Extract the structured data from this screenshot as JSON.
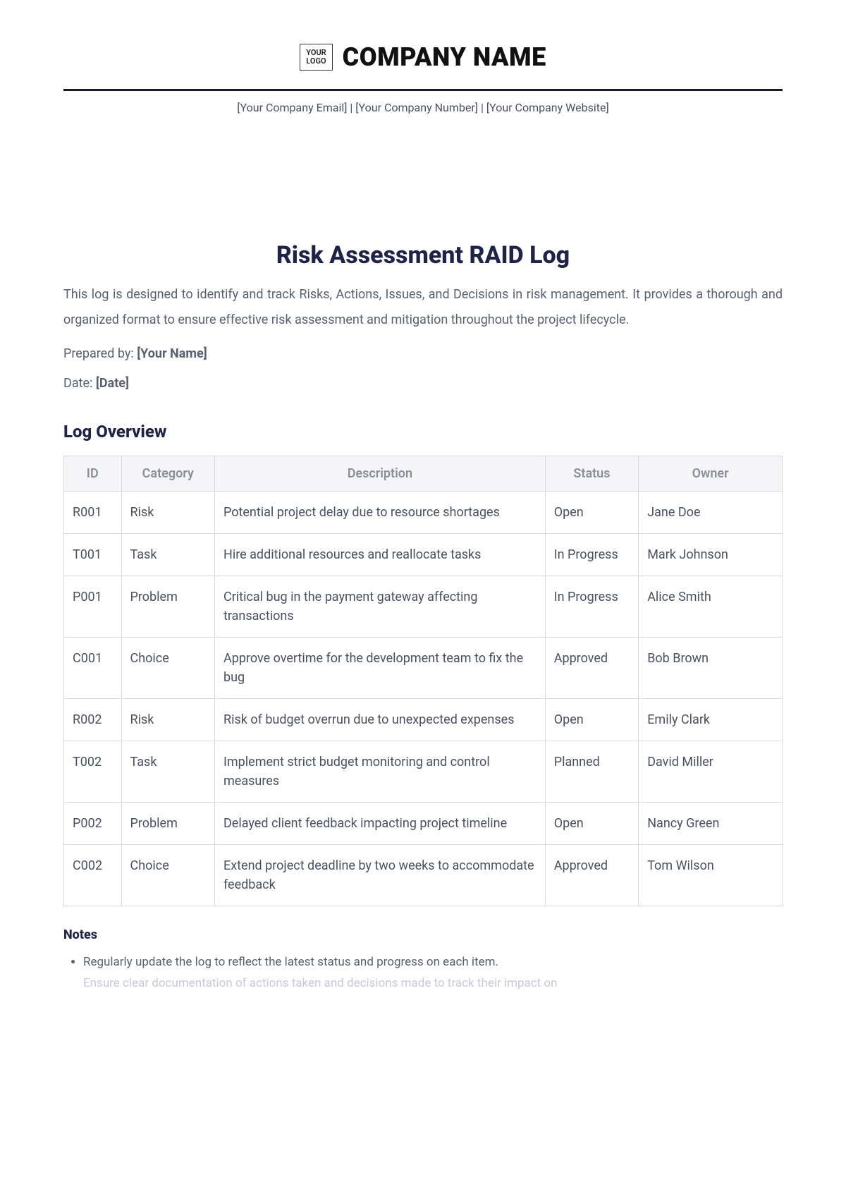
{
  "header": {
    "logo_text_line1": "YOUR",
    "logo_text_line2": "LOGO",
    "company_name": "COMPANY NAME",
    "contact_line": "[Your Company Email] | [Your Company Number] | [Your Company Website]"
  },
  "document": {
    "title": "Risk Assessment RAID Log",
    "intro": "This log is designed to identify and track Risks, Actions, Issues, and Decisions in risk management. It provides a thorough and organized format to ensure effective risk assessment and mitigation throughout the project lifecycle.",
    "prepared_by_label": "Prepared by: ",
    "prepared_by_value": "[Your Name]",
    "date_label": "Date: ",
    "date_value": "[Date]"
  },
  "log": {
    "section_title": "Log Overview",
    "columns": {
      "id": "ID",
      "category": "Category",
      "description": "Description",
      "status": "Status",
      "owner": "Owner"
    },
    "rows": [
      {
        "id": "R001",
        "category": "Risk",
        "description": "Potential project delay due to resource shortages",
        "status": "Open",
        "owner": "Jane Doe"
      },
      {
        "id": "T001",
        "category": "Task",
        "description": "Hire additional resources and reallocate tasks",
        "status": "In Progress",
        "owner": "Mark Johnson"
      },
      {
        "id": "P001",
        "category": "Problem",
        "description": "Critical bug in the payment gateway affecting transactions",
        "status": "In Progress",
        "owner": "Alice Smith"
      },
      {
        "id": "C001",
        "category": "Choice",
        "description": "Approve overtime for the development team to fix the bug",
        "status": "Approved",
        "owner": "Bob Brown"
      },
      {
        "id": "R002",
        "category": "Risk",
        "description": "Risk of budget overrun due to unexpected expenses",
        "status": "Open",
        "owner": "Emily Clark"
      },
      {
        "id": "T002",
        "category": "Task",
        "description": "Implement strict budget monitoring and control measures",
        "status": "Planned",
        "owner": "David Miller"
      },
      {
        "id": "P002",
        "category": "Problem",
        "description": "Delayed client feedback impacting project timeline",
        "status": "Open",
        "owner": "Nancy Green"
      },
      {
        "id": "C002",
        "category": "Choice",
        "description": "Extend project deadline by two weeks to accommodate feedback",
        "status": "Approved",
        "owner": "Tom Wilson"
      }
    ]
  },
  "notes": {
    "title": "Notes",
    "items": [
      "Regularly update the log to reflect the latest status and progress on each item."
    ],
    "cutoff_text": "Ensure clear documentation of actions taken and decisions made to track their impact on"
  },
  "style": {
    "title_color": "#1e2347",
    "body_text_color": "#5a6070",
    "header_bg": "#f5f5f7",
    "header_text": "#8a8f9c",
    "border_color": "#d8dae0",
    "divider_color": "#1a1a2e"
  }
}
